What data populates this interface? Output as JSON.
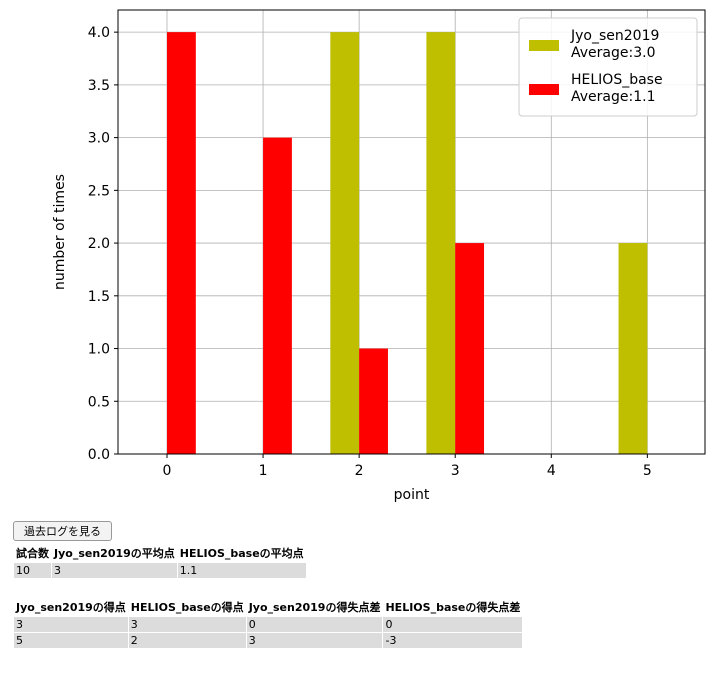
{
  "chart_data": {
    "type": "bar",
    "x": [
      0,
      1,
      2,
      3,
      4,
      5
    ],
    "xlabel": "point",
    "ylabel": "number of times",
    "series": [
      {
        "name": "Jyo_sen2019",
        "average_label": "Average:3.0",
        "color": "#bfbf00",
        "values": [
          0,
          0,
          4,
          4,
          0,
          2
        ]
      },
      {
        "name": "HELIOS_base",
        "average_label": "Average:1.1",
        "color": "#ff0000",
        "values": [
          4,
          3,
          1,
          2,
          0,
          0
        ]
      }
    ],
    "xlim": [
      -0.51,
      5.6
    ],
    "xticks": [
      0,
      1,
      2,
      3,
      4,
      5
    ],
    "ylim": [
      0,
      4.21
    ],
    "yticks": [
      {
        "value": 0,
        "label": "0.0"
      },
      {
        "value": 0.5,
        "label": "0.5"
      },
      {
        "value": 1,
        "label": "1.0"
      },
      {
        "value": 1.5,
        "label": "1.5"
      },
      {
        "value": 2,
        "label": "2.0"
      },
      {
        "value": 2.5,
        "label": "2.5"
      },
      {
        "value": 3,
        "label": "3.0"
      },
      {
        "value": 3.5,
        "label": "3.5"
      },
      {
        "value": 4,
        "label": "4.0"
      }
    ],
    "grid": true,
    "legend": "upper right"
  },
  "button": {
    "label": "過去ログを見る"
  },
  "summary_table": {
    "header": [
      "試合数",
      "Jyo_sen2019の平均点",
      "HELIOS_baseの平均点"
    ],
    "rows": [
      [
        "10",
        "3",
        "1.1"
      ]
    ]
  },
  "score_table": {
    "header": [
      "Jyo_sen2019の得点",
      "HELIOS_baseの得点",
      "Jyo_sen2019の得失点差",
      "HELIOS_baseの得失点差"
    ],
    "rows": [
      [
        "3",
        "3",
        "0",
        "0"
      ],
      [
        "5",
        "2",
        "3",
        "-3"
      ]
    ]
  }
}
